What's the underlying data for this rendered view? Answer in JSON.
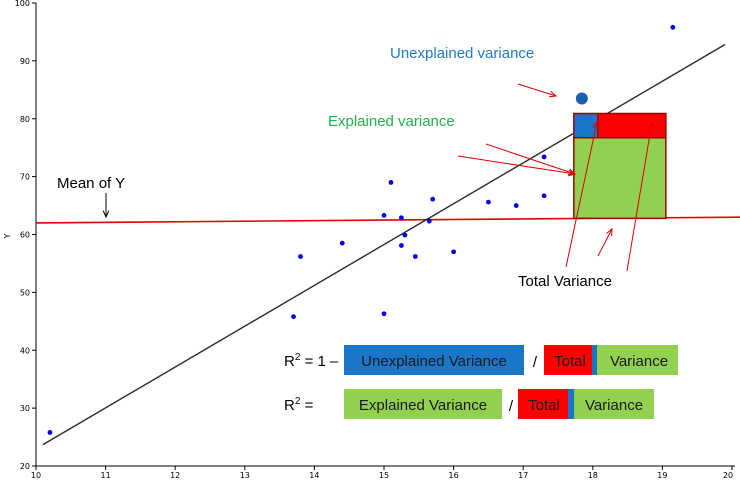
{
  "chart_data": {
    "type": "scatter",
    "title": "",
    "xlabel": "",
    "ylabel": "Y",
    "xlim": [
      10,
      20
    ],
    "ylim": [
      20,
      100
    ],
    "x_ticks": [
      "10",
      "11",
      "12",
      "13",
      "14",
      "15",
      "16",
      "17",
      "18",
      "19",
      "20"
    ],
    "y_ticks": [
      "20",
      "30",
      "40",
      "50",
      "60",
      "70",
      "80",
      "90",
      "100"
    ],
    "points": [
      {
        "x": 10.2,
        "y": 25.8
      },
      {
        "x": 13.7,
        "y": 45.8
      },
      {
        "x": 13.8,
        "y": 56.2
      },
      {
        "x": 14.4,
        "y": 58.5
      },
      {
        "x": 15.0,
        "y": 63.3
      },
      {
        "x": 15.0,
        "y": 46.3
      },
      {
        "x": 15.1,
        "y": 69.0
      },
      {
        "x": 15.25,
        "y": 62.9
      },
      {
        "x": 15.25,
        "y": 58.1
      },
      {
        "x": 15.3,
        "y": 59.9
      },
      {
        "x": 15.45,
        "y": 56.2
      },
      {
        "x": 15.65,
        "y": 62.3
      },
      {
        "x": 15.7,
        "y": 66.1
      },
      {
        "x": 16.0,
        "y": 57.0
      },
      {
        "x": 16.5,
        "y": 65.6
      },
      {
        "x": 16.9,
        "y": 65.0
      },
      {
        "x": 17.3,
        "y": 66.7
      },
      {
        "x": 17.3,
        "y": 73.4
      },
      {
        "x": 19.15,
        "y": 95.8
      }
    ],
    "highlight_point": {
      "x": 17.9,
      "y": 83.5
    },
    "regression_line": {
      "x": [
        10,
        20
      ],
      "y": [
        23.7,
        93.0
      ]
    },
    "mean_line": {
      "x": [
        10,
        20
      ],
      "y": [
        62.0,
        63.0
      ]
    },
    "annotations": {
      "unexplained": "Unexplained variance",
      "explained": "Explained variance",
      "mean_of_y": "Mean of Y",
      "total": "Total Variance"
    },
    "formula1": {
      "lhs": "R",
      "sup": "2",
      "eq": " = 1 –",
      "unexplained": "Unexplained Variance",
      "slash": "/",
      "total": "Total",
      "variance": "Variance"
    },
    "formula2": {
      "lhs": "R",
      "sup": "2",
      "eq": " =",
      "explained": "Explained Variance",
      "slash": "/",
      "total": "Total",
      "variance": "Variance"
    },
    "colors": {
      "points": "#0000ee",
      "highlight": "#1a5fb4",
      "regression": "#2b2b2b",
      "mean": "#e00000",
      "unexplained_text": "#1f7ac4",
      "explained_text": "#22b14c",
      "red_box": "#ff0000",
      "blue_box": "#1976c8",
      "green_box": "#92d050",
      "box_border": "#a00000",
      "arrow": "#e00000"
    }
  }
}
